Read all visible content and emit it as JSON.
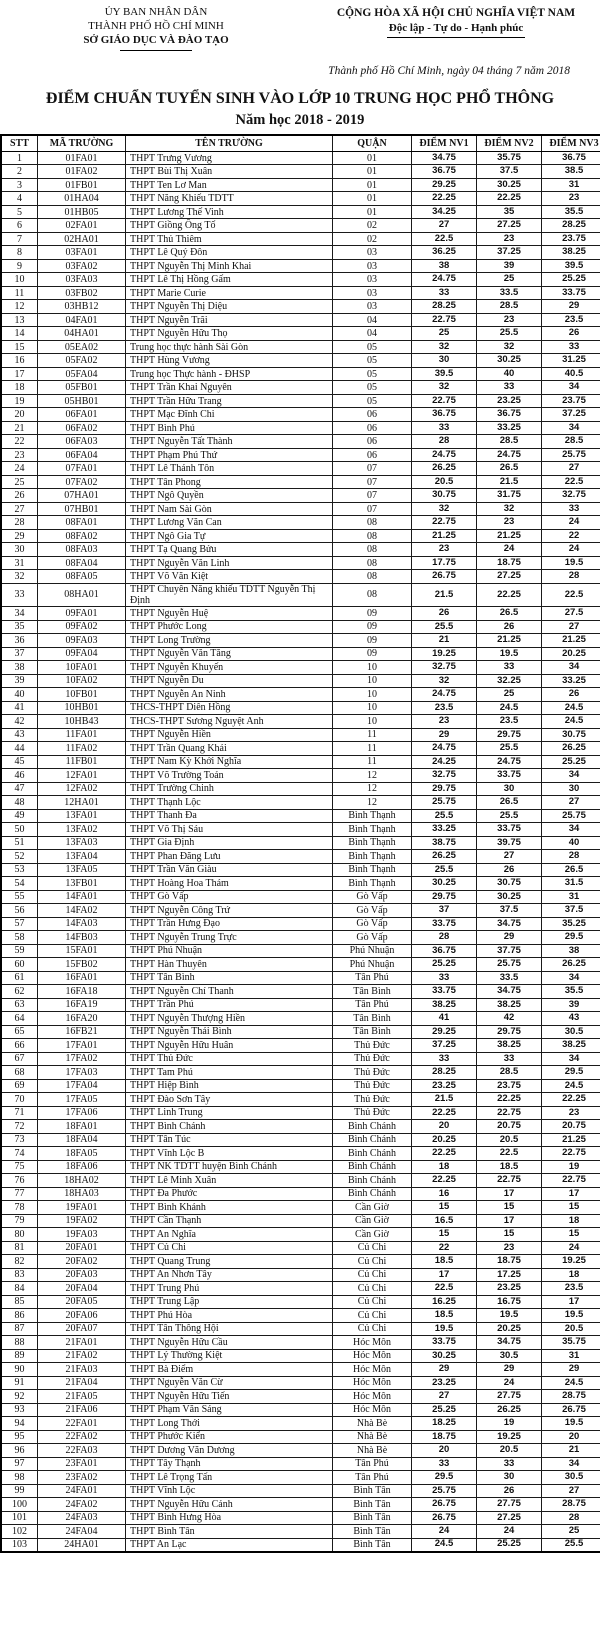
{
  "header": {
    "issuer": [
      "ỦY BAN NHÂN DÂN",
      "THÀNH PHỐ HỒ CHÍ MINH",
      "SỞ GIÁO DỤC VÀ ĐÀO TẠO"
    ],
    "republic": [
      "CỘNG HÒA XÃ HỘI CHỦ NGHĨA VIỆT NAM",
      "Độc lập - Tự do - Hạnh phúc"
    ],
    "date_line": "Thành phố Hồ Chí Minh, ngày 04 tháng 7 năm 2018"
  },
  "title": {
    "line1": "ĐIỂM CHUẨN TUYỂN SINH VÀO LỚP 10 TRUNG HỌC PHỔ THÔNG",
    "line2": "Năm học 2018 - 2019"
  },
  "table": {
    "columns": [
      "STT",
      "MÃ TRƯỜNG",
      "TÊN TRƯỜNG",
      "QUẬN",
      "ĐIỂM NV1",
      "ĐIỂM NV2",
      "ĐIỂM NV3"
    ],
    "rows": [
      [
        "1",
        "01FA01",
        "THPT Trưng Vương",
        "01",
        "34.75",
        "35.75",
        "36.75"
      ],
      [
        "2",
        "01FA02",
        "THPT Bùi Thị Xuân",
        "01",
        "36.75",
        "37.5",
        "38.5"
      ],
      [
        "3",
        "01FB01",
        "THPT Ten Lơ Man",
        "01",
        "29.25",
        "30.25",
        "31"
      ],
      [
        "4",
        "01HA04",
        "THPT Năng Khiếu TDTT",
        "01",
        "22.25",
        "22.25",
        "23"
      ],
      [
        "5",
        "01HB05",
        "THPT Lương Thế Vinh",
        "01",
        "34.25",
        "35",
        "35.5"
      ],
      [
        "6",
        "02FA01",
        "THPT Giồng Ông Tố",
        "02",
        "27",
        "27.25",
        "28.25"
      ],
      [
        "7",
        "02HA01",
        "THPT Thủ Thiêm",
        "02",
        "22.5",
        "23",
        "23.75"
      ],
      [
        "8",
        "03FA01",
        "THPT Lê Quý Đôn",
        "03",
        "36.25",
        "37.25",
        "38.25"
      ],
      [
        "9",
        "03FA02",
        "THPT Nguyễn Thị Minh Khai",
        "03",
        "38",
        "39",
        "39.5"
      ],
      [
        "10",
        "03FA03",
        "THPT Lê Thị Hồng Gấm",
        "03",
        "24.75",
        "25",
        "25.25"
      ],
      [
        "11",
        "03FB02",
        "THPT Marie Curie",
        "03",
        "33",
        "33.5",
        "33.75"
      ],
      [
        "12",
        "03HB12",
        "THPT Nguyễn Thị Diệu",
        "03",
        "28.25",
        "28.5",
        "29"
      ],
      [
        "13",
        "04FA01",
        "THPT Nguyễn Trãi",
        "04",
        "22.75",
        "23",
        "23.5"
      ],
      [
        "14",
        "04HA01",
        "THPT Nguyễn Hữu Thọ",
        "04",
        "25",
        "25.5",
        "26"
      ],
      [
        "15",
        "05EA02",
        "Trung học thực hành Sài Gòn",
        "05",
        "32",
        "32",
        "33"
      ],
      [
        "16",
        "05FA02",
        "THPT Hùng Vương",
        "05",
        "30",
        "30.25",
        "31.25"
      ],
      [
        "17",
        "05FA04",
        "Trung học Thực hành - ĐHSP",
        "05",
        "39.5",
        "40",
        "40.5"
      ],
      [
        "18",
        "05FB01",
        "THPT Trần Khai Nguyên",
        "05",
        "32",
        "33",
        "34"
      ],
      [
        "19",
        "05HB01",
        "THPT Trần Hữu Trang",
        "05",
        "22.75",
        "23.25",
        "23.75"
      ],
      [
        "20",
        "06FA01",
        "THPT Mạc Đĩnh Chi",
        "06",
        "36.75",
        "36.75",
        "37.25"
      ],
      [
        "21",
        "06FA02",
        "THPT Bình Phú",
        "06",
        "33",
        "33.25",
        "34"
      ],
      [
        "22",
        "06FA03",
        "THPT Nguyễn Tất Thành",
        "06",
        "28",
        "28.5",
        "28.5"
      ],
      [
        "23",
        "06FA04",
        "THPT Phạm Phú Thứ",
        "06",
        "24.75",
        "24.75",
        "25.75"
      ],
      [
        "24",
        "07FA01",
        "THPT Lê Thánh Tôn",
        "07",
        "26.25",
        "26.5",
        "27"
      ],
      [
        "25",
        "07FA02",
        "THPT Tân Phong",
        "07",
        "20.5",
        "21.5",
        "22.5"
      ],
      [
        "26",
        "07HA01",
        "THPT Ngô Quyền",
        "07",
        "30.75",
        "31.75",
        "32.75"
      ],
      [
        "27",
        "07HB01",
        "THPT Nam Sài Gòn",
        "07",
        "32",
        "32",
        "33"
      ],
      [
        "28",
        "08FA01",
        "THPT Lương Văn Can",
        "08",
        "22.75",
        "23",
        "24"
      ],
      [
        "29",
        "08FA02",
        "THPT Ngô Gia Tự",
        "08",
        "21.25",
        "21.25",
        "22"
      ],
      [
        "30",
        "08FA03",
        "THPT Tạ Quang Bửu",
        "08",
        "23",
        "24",
        "24"
      ],
      [
        "31",
        "08FA04",
        "THPT Nguyễn Văn Linh",
        "08",
        "17.75",
        "18.75",
        "19.5"
      ],
      [
        "32",
        "08FA05",
        "THPT Võ Văn Kiệt",
        "08",
        "26.75",
        "27.25",
        "28"
      ],
      [
        "33",
        "08HA01",
        "THPT Chuyên Năng khiếu TDTT Nguyễn Thị Định",
        "08",
        "21.5",
        "22.25",
        "22.5"
      ],
      [
        "34",
        "09FA01",
        "THPT Nguyễn Huệ",
        "09",
        "26",
        "26.5",
        "27.5"
      ],
      [
        "35",
        "09FA02",
        "THPT Phước Long",
        "09",
        "25.5",
        "26",
        "27"
      ],
      [
        "36",
        "09FA03",
        "THPT Long Trường",
        "09",
        "21",
        "21.25",
        "21.25"
      ],
      [
        "37",
        "09FA04",
        "THPT Nguyễn Văn Tăng",
        "09",
        "19.25",
        "19.5",
        "20.25"
      ],
      [
        "38",
        "10FA01",
        "THPT Nguyễn Khuyến",
        "10",
        "32.75",
        "33",
        "34"
      ],
      [
        "39",
        "10FA02",
        "THPT Nguyễn Du",
        "10",
        "32",
        "32.25",
        "33.25"
      ],
      [
        "40",
        "10FB01",
        "THPT Nguyễn An Ninh",
        "10",
        "24.75",
        "25",
        "26"
      ],
      [
        "41",
        "10HB01",
        "THCS-THPT Diên Hồng",
        "10",
        "23.5",
        "24.5",
        "24.5"
      ],
      [
        "42",
        "10HB43",
        "THCS-THPT Sương Nguyệt Anh",
        "10",
        "23",
        "23.5",
        "24.5"
      ],
      [
        "43",
        "11FA01",
        "THPT Nguyễn Hiền",
        "11",
        "29",
        "29.75",
        "30.75"
      ],
      [
        "44",
        "11FA02",
        "THPT Trần Quang Khải",
        "11",
        "24.75",
        "25.5",
        "26.25"
      ],
      [
        "45",
        "11FB01",
        "THPT Nam Kỳ Khởi Nghĩa",
        "11",
        "24.25",
        "24.75",
        "25.25"
      ],
      [
        "46",
        "12FA01",
        "THPT Võ Trường Toản",
        "12",
        "32.75",
        "33.75",
        "34"
      ],
      [
        "47",
        "12FA02",
        "THPT Trường Chinh",
        "12",
        "29.75",
        "30",
        "30"
      ],
      [
        "48",
        "12HA01",
        "THPT Thạnh Lộc",
        "12",
        "25.75",
        "26.5",
        "27"
      ],
      [
        "49",
        "13FA01",
        "THPT Thanh Đa",
        "Bình Thạnh",
        "25.5",
        "25.5",
        "25.75"
      ],
      [
        "50",
        "13FA02",
        "THPT Võ Thị Sáu",
        "Bình Thạnh",
        "33.25",
        "33.75",
        "34"
      ],
      [
        "51",
        "13FA03",
        "THPT Gia Định",
        "Bình Thạnh",
        "38.75",
        "39.75",
        "40"
      ],
      [
        "52",
        "13FA04",
        "THPT Phan Đăng Lưu",
        "Bình Thạnh",
        "26.25",
        "27",
        "28"
      ],
      [
        "53",
        "13FA05",
        "THPT Trần Văn Giàu",
        "Bình Thạnh",
        "25.5",
        "26",
        "26.5"
      ],
      [
        "54",
        "13FB01",
        "THPT Hoàng Hoa Thám",
        "Bình Thạnh",
        "30.25",
        "30.75",
        "31.5"
      ],
      [
        "55",
        "14FA01",
        "THPT Gò Vấp",
        "Gò Vấp",
        "29.75",
        "30.25",
        "31"
      ],
      [
        "56",
        "14FA02",
        "THPT Nguyễn Công Trứ",
        "Gò Vấp",
        "37",
        "37.5",
        "37.5"
      ],
      [
        "57",
        "14FA03",
        "THPT Trần Hưng Đạo",
        "Gò Vấp",
        "33.75",
        "34.75",
        "35.25"
      ],
      [
        "58",
        "14FB03",
        "THPT Nguyễn Trung Trực",
        "Gò Vấp",
        "28",
        "29",
        "29.5"
      ],
      [
        "59",
        "15FA01",
        "THPT Phú Nhuận",
        "Phú Nhuận",
        "36.75",
        "37.75",
        "38"
      ],
      [
        "60",
        "15FB02",
        "THPT Hàn Thuyên",
        "Phú Nhuận",
        "25.25",
        "25.75",
        "26.25"
      ],
      [
        "61",
        "16FA01",
        "THPT Tân Bình",
        "Tân Phú",
        "33",
        "33.5",
        "34"
      ],
      [
        "62",
        "16FA18",
        "THPT Nguyễn Chí Thanh",
        "Tân Bình",
        "33.75",
        "34.75",
        "35.5"
      ],
      [
        "63",
        "16FA19",
        "THPT Trần Phú",
        "Tân Phú",
        "38.25",
        "38.25",
        "39"
      ],
      [
        "64",
        "16FA20",
        "THPT Nguyễn Thượng Hiền",
        "Tân Bình",
        "41",
        "42",
        "43"
      ],
      [
        "65",
        "16FB21",
        "THPT Nguyễn Thái Bình",
        "Tân Bình",
        "29.25",
        "29.75",
        "30.5"
      ],
      [
        "66",
        "17FA01",
        "THPT Nguyễn Hữu Huân",
        "Thủ Đức",
        "37.25",
        "38.25",
        "38.25"
      ],
      [
        "67",
        "17FA02",
        "THPT Thủ Đức",
        "Thủ Đức",
        "33",
        "33",
        "34"
      ],
      [
        "68",
        "17FA03",
        "THPT Tam Phú",
        "Thủ Đức",
        "28.25",
        "28.5",
        "29.5"
      ],
      [
        "69",
        "17FA04",
        "THPT Hiệp Bình",
        "Thủ Đức",
        "23.25",
        "23.75",
        "24.5"
      ],
      [
        "70",
        "17FA05",
        "THPT Đào Sơn Tây",
        "Thủ Đức",
        "21.5",
        "22.25",
        "22.25"
      ],
      [
        "71",
        "17FA06",
        "THPT Linh Trung",
        "Thủ Đức",
        "22.25",
        "22.75",
        "23"
      ],
      [
        "72",
        "18FA01",
        "THPT Bình Chánh",
        "Bình Chánh",
        "20",
        "20.75",
        "20.75"
      ],
      [
        "73",
        "18FA04",
        "THPT Tân Túc",
        "Bình Chánh",
        "20.25",
        "20.5",
        "21.25"
      ],
      [
        "74",
        "18FA05",
        "THPT Vĩnh Lộc B",
        "Bình Chánh",
        "22.25",
        "22.5",
        "22.75"
      ],
      [
        "75",
        "18FA06",
        "THPT NK TDTT huyện Bình Chánh",
        "Bình Chánh",
        "18",
        "18.5",
        "19"
      ],
      [
        "76",
        "18HA02",
        "THPT Lê Minh Xuân",
        "Bình Chánh",
        "22.25",
        "22.75",
        "22.75"
      ],
      [
        "77",
        "18HA03",
        "THPT Đa Phước",
        "Bình Chánh",
        "16",
        "17",
        "17"
      ],
      [
        "78",
        "19FA01",
        "THPT Bình Khánh",
        "Cần Giờ",
        "15",
        "15",
        "15"
      ],
      [
        "79",
        "19FA02",
        "THPT Cần Thạnh",
        "Cần Giờ",
        "16.5",
        "17",
        "18"
      ],
      [
        "80",
        "19FA03",
        "THPT An Nghĩa",
        "Cần Giờ",
        "15",
        "15",
        "15"
      ],
      [
        "81",
        "20FA01",
        "THPT Củ Chi",
        "Củ Chi",
        "22",
        "23",
        "24"
      ],
      [
        "82",
        "20FA02",
        "THPT Quang Trung",
        "Củ Chi",
        "18.5",
        "18.75",
        "19.25"
      ],
      [
        "83",
        "20FA03",
        "THPT An Nhơn Tây",
        "Củ Chi",
        "17",
        "17.25",
        "18"
      ],
      [
        "84",
        "20FA04",
        "THPT Trung Phú",
        "Củ Chi",
        "22.5",
        "23.25",
        "23.5"
      ],
      [
        "85",
        "20FA05",
        "THPT Trung Lập",
        "Củ Chi",
        "16.25",
        "16.75",
        "17"
      ],
      [
        "86",
        "20FA06",
        "THPT Phú Hòa",
        "Củ Chi",
        "18.5",
        "19.5",
        "19.5"
      ],
      [
        "87",
        "20FA07",
        "THPT Tân Thông Hội",
        "Củ Chi",
        "19.5",
        "20.25",
        "20.5"
      ],
      [
        "88",
        "21FA01",
        "THPT Nguyễn Hữu Cầu",
        "Hóc Môn",
        "33.75",
        "34.75",
        "35.75"
      ],
      [
        "89",
        "21FA02",
        "THPT Lý Thường Kiệt",
        "Hóc Môn",
        "30.25",
        "30.5",
        "31"
      ],
      [
        "90",
        "21FA03",
        "THPT Bà Điểm",
        "Hóc Môn",
        "29",
        "29",
        "29"
      ],
      [
        "91",
        "21FA04",
        "THPT Nguyễn Văn Cừ",
        "Hóc Môn",
        "23.25",
        "24",
        "24.5"
      ],
      [
        "92",
        "21FA05",
        "THPT Nguyễn Hữu Tiến",
        "Hóc Môn",
        "27",
        "27.75",
        "28.75"
      ],
      [
        "93",
        "21FA06",
        "THPT Phạm Văn Sáng",
        "Hóc Môn",
        "25.25",
        "26.25",
        "26.75"
      ],
      [
        "94",
        "22FA01",
        "THPT Long Thới",
        "Nhà Bè",
        "18.25",
        "19",
        "19.5"
      ],
      [
        "95",
        "22FA02",
        "THPT Phước Kiển",
        "Nhà Bè",
        "18.75",
        "19.25",
        "20"
      ],
      [
        "96",
        "22FA03",
        "THPT Dương Văn Dương",
        "Nhà Bè",
        "20",
        "20.5",
        "21"
      ],
      [
        "97",
        "23FA01",
        "THPT Tây Thạnh",
        "Tân Phú",
        "33",
        "33",
        "34"
      ],
      [
        "98",
        "23FA02",
        "THPT Lê Trọng Tấn",
        "Tân Phú",
        "29.5",
        "30",
        "30.5"
      ],
      [
        "99",
        "24FA01",
        "THPT Vĩnh Lộc",
        "Bình Tân",
        "25.75",
        "26",
        "27"
      ],
      [
        "100",
        "24FA02",
        "THPT Nguyễn Hữu Cảnh",
        "Bình Tân",
        "26.75",
        "27.75",
        "28.75"
      ],
      [
        "101",
        "24FA03",
        "THPT Bình Hưng Hòa",
        "Bình Tân",
        "26.75",
        "27.25",
        "28"
      ],
      [
        "102",
        "24FA04",
        "THPT Bình Tân",
        "Bình Tân",
        "24",
        "24",
        "25"
      ],
      [
        "103",
        "24HA01",
        "THPT An Lạc",
        "Bình Tân",
        "24.5",
        "25.25",
        "25.5"
      ]
    ]
  }
}
